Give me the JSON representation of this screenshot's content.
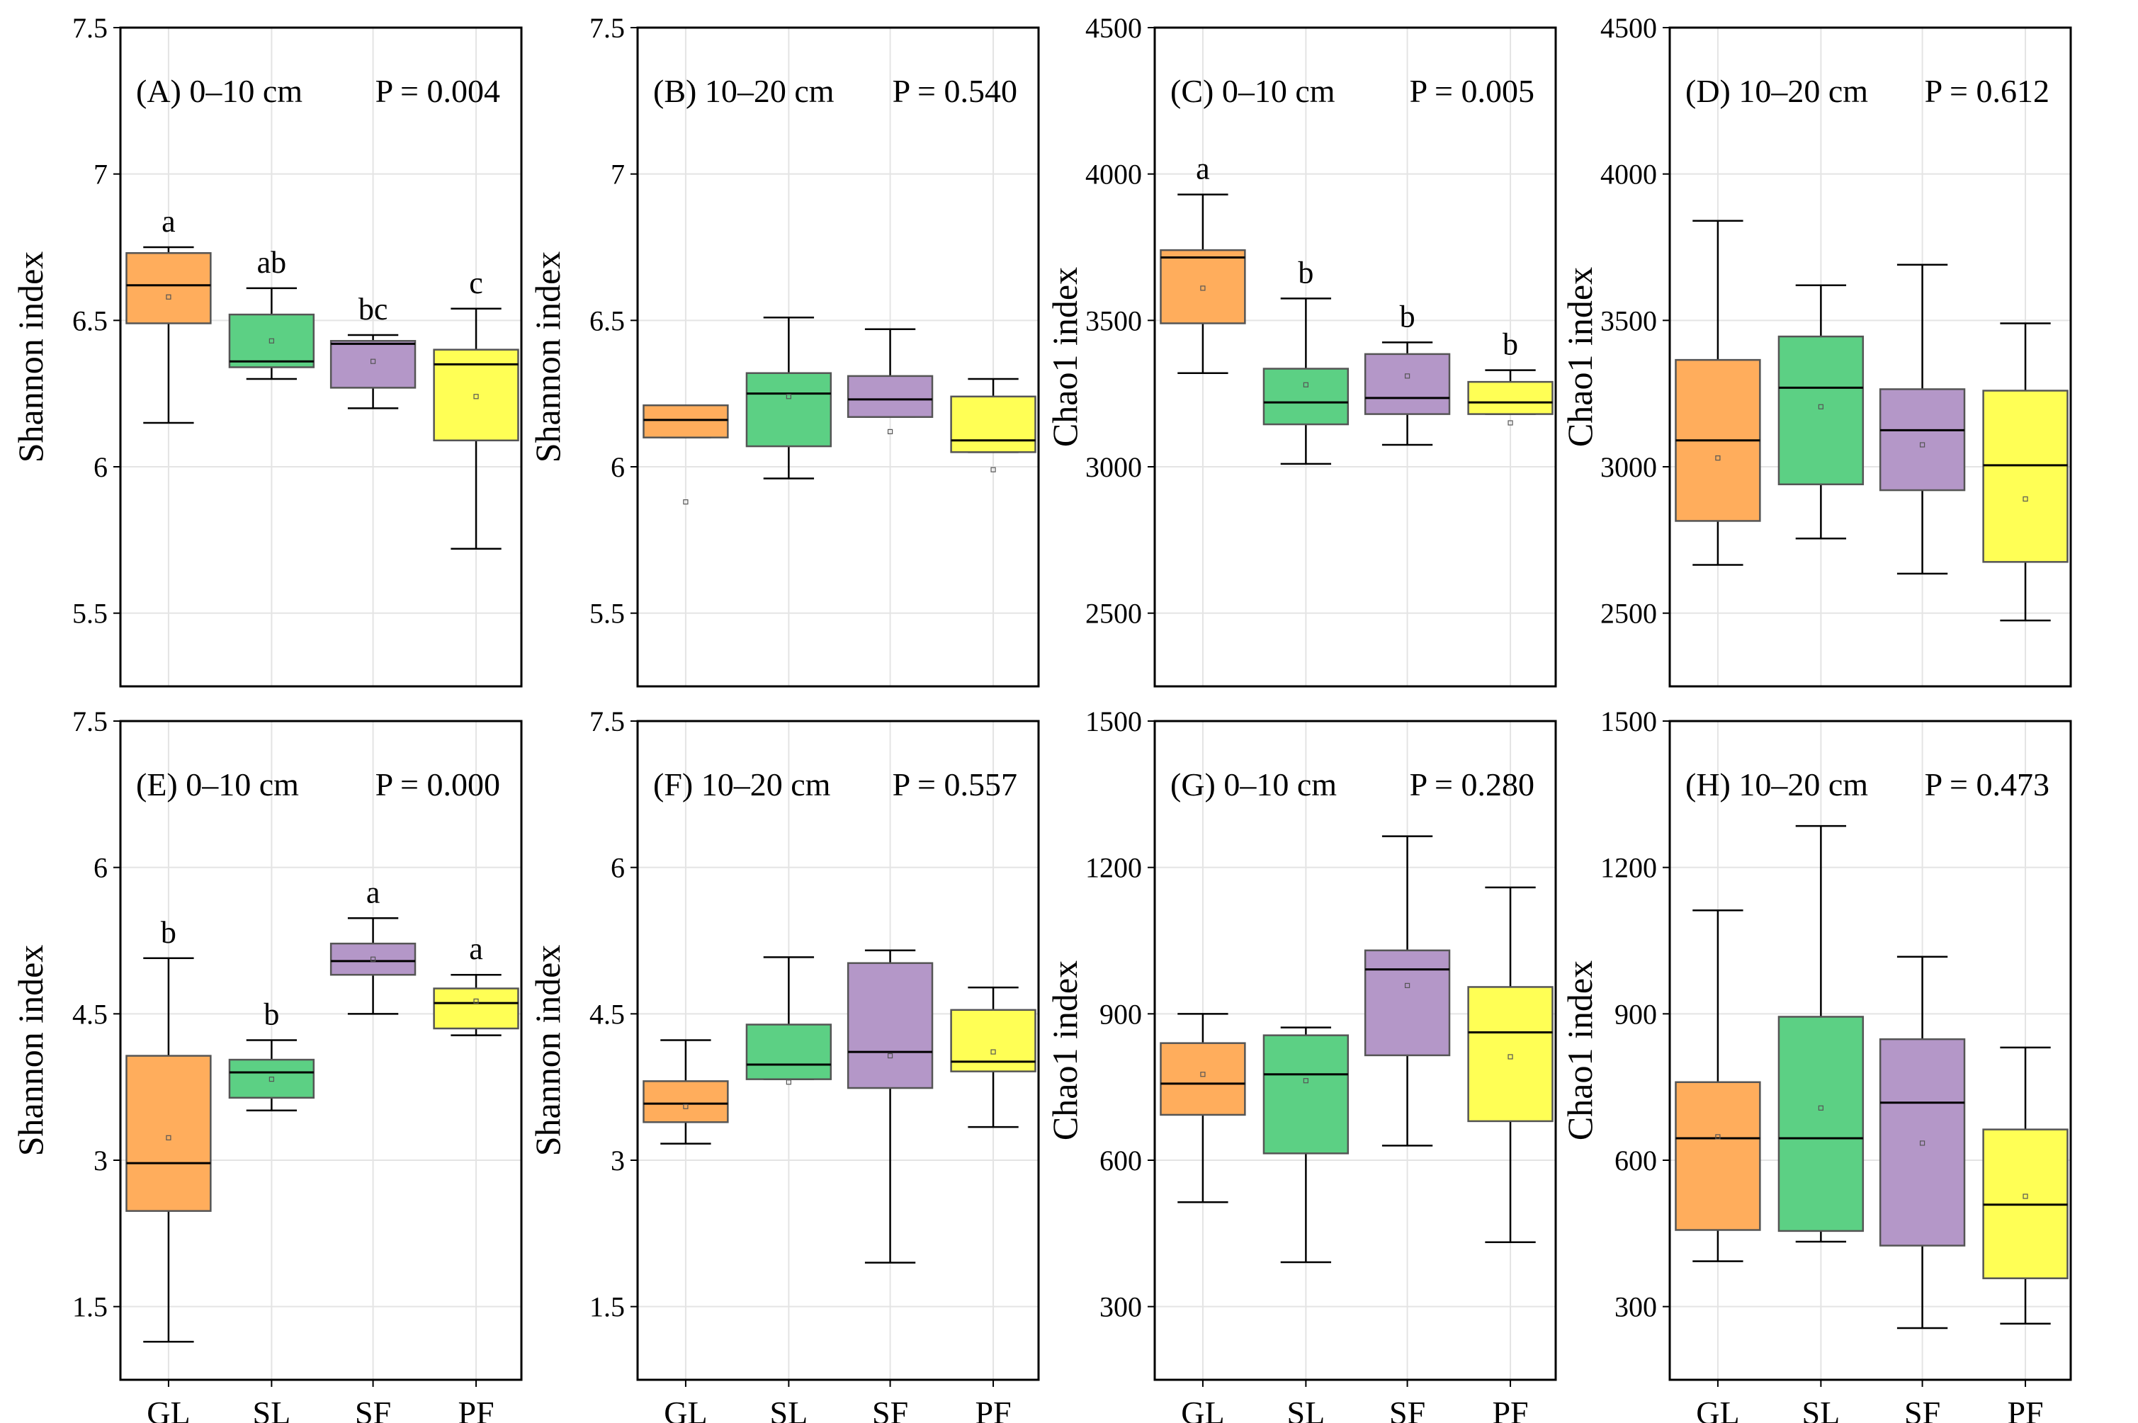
{
  "chart_data": [
    {
      "type": "box",
      "panel": "A",
      "title": "(A) 0–10 cm",
      "p_label": "P = 0.004",
      "ylabel": "Shannon index",
      "ylim": [
        5.25,
        7.5
      ],
      "yticks": [
        5.5,
        6.0,
        6.5,
        7.0,
        7.5
      ],
      "categories": [
        "GL",
        "SL",
        "SF",
        "PF"
      ],
      "boxes": [
        {
          "min": 6.15,
          "q1": 6.49,
          "median": 6.62,
          "q3": 6.73,
          "max": 6.75,
          "mean": 6.58,
          "letter": "a"
        },
        {
          "min": 6.3,
          "q1": 6.34,
          "median": 6.36,
          "q3": 6.52,
          "max": 6.61,
          "mean": 6.43,
          "letter": "ab"
        },
        {
          "min": 6.2,
          "q1": 6.27,
          "median": 6.42,
          "q3": 6.43,
          "max": 6.45,
          "mean": 6.36,
          "letter": "bc"
        },
        {
          "min": 5.72,
          "q1": 6.09,
          "median": 6.35,
          "q3": 6.4,
          "max": 6.54,
          "mean": 6.24,
          "letter": "c"
        }
      ]
    },
    {
      "type": "box",
      "panel": "B",
      "title": "(B) 10–20 cm",
      "p_label": "P = 0.540",
      "ylabel": "Shannon index",
      "ylim": [
        5.25,
        7.5
      ],
      "yticks": [
        5.5,
        6.0,
        6.5,
        7.0,
        7.5
      ],
      "categories": [
        "GL",
        "SL",
        "SF",
        "PF"
      ],
      "boxes": [
        {
          "min": 6.1,
          "q1": 6.1,
          "median": 6.16,
          "q3": 6.21,
          "max": 6.21,
          "mean": 5.88,
          "letter": ""
        },
        {
          "min": 5.96,
          "q1": 6.07,
          "median": 6.25,
          "q3": 6.32,
          "max": 6.51,
          "mean": 6.24,
          "letter": ""
        },
        {
          "min": 6.17,
          "q1": 6.17,
          "median": 6.23,
          "q3": 6.31,
          "max": 6.47,
          "mean": 6.12,
          "letter": ""
        },
        {
          "min": 6.05,
          "q1": 6.05,
          "median": 6.09,
          "q3": 6.24,
          "max": 6.3,
          "mean": 5.99,
          "letter": ""
        }
      ]
    },
    {
      "type": "box",
      "panel": "C",
      "title": "(C) 0–10 cm",
      "p_label": "P = 0.005",
      "ylabel": "Chao1 index",
      "ylim": [
        2250,
        4500
      ],
      "yticks": [
        2500,
        3000,
        3500,
        4000,
        4500
      ],
      "categories": [
        "GL",
        "SL",
        "SF",
        "PF"
      ],
      "boxes": [
        {
          "min": 3320,
          "q1": 3490,
          "median": 3715,
          "q3": 3740,
          "max": 3930,
          "mean": 3610,
          "letter": "a"
        },
        {
          "min": 3010,
          "q1": 3145,
          "median": 3220,
          "q3": 3335,
          "max": 3575,
          "mean": 3280,
          "letter": "b"
        },
        {
          "min": 3075,
          "q1": 3180,
          "median": 3235,
          "q3": 3385,
          "max": 3425,
          "mean": 3310,
          "letter": "b"
        },
        {
          "min": 3180,
          "q1": 3180,
          "median": 3220,
          "q3": 3290,
          "max": 3330,
          "mean": 3150,
          "letter": "b"
        }
      ]
    },
    {
      "type": "box",
      "panel": "D",
      "title": "(D) 10–20 cm",
      "p_label": "P = 0.612",
      "ylabel": "Chao1 index",
      "ylim": [
        2250,
        4500
      ],
      "yticks": [
        2500,
        3000,
        3500,
        4000,
        4500
      ],
      "categories": [
        "GL",
        "SL",
        "SF",
        "PF"
      ],
      "boxes": [
        {
          "min": 2665,
          "q1": 2815,
          "median": 3090,
          "q3": 3365,
          "max": 3840,
          "mean": 3030,
          "letter": ""
        },
        {
          "min": 2755,
          "q1": 2940,
          "median": 3270,
          "q3": 3445,
          "max": 3620,
          "mean": 3205,
          "letter": ""
        },
        {
          "min": 2635,
          "q1": 2920,
          "median": 3125,
          "q3": 3265,
          "max": 3690,
          "mean": 3075,
          "letter": ""
        },
        {
          "min": 2475,
          "q1": 2675,
          "median": 3005,
          "q3": 3260,
          "max": 3490,
          "mean": 2890,
          "letter": ""
        }
      ]
    },
    {
      "type": "box",
      "panel": "E",
      "title": "(E) 0–10 cm",
      "p_label": "P = 0.000",
      "ylabel": "Shannon index",
      "ylim": [
        0.75,
        7.5
      ],
      "yticks": [
        1.5,
        3.0,
        4.5,
        6.0,
        7.5
      ],
      "categories": [
        "GL",
        "SL",
        "SF",
        "PF"
      ],
      "boxes": [
        {
          "min": 1.14,
          "q1": 2.48,
          "median": 2.97,
          "q3": 4.07,
          "max": 5.07,
          "mean": 3.23,
          "letter": "b"
        },
        {
          "min": 3.51,
          "q1": 3.64,
          "median": 3.9,
          "q3": 4.03,
          "max": 4.23,
          "mean": 3.83,
          "letter": "b"
        },
        {
          "min": 4.5,
          "q1": 4.9,
          "median": 5.04,
          "q3": 5.22,
          "max": 5.48,
          "mean": 5.06,
          "letter": "a"
        },
        {
          "min": 4.28,
          "q1": 4.35,
          "median": 4.61,
          "q3": 4.76,
          "max": 4.9,
          "mean": 4.63,
          "letter": "a"
        }
      ]
    },
    {
      "type": "box",
      "panel": "F",
      "title": "(F) 10–20 cm",
      "p_label": "P = 0.557",
      "ylabel": "Shannon index",
      "ylim": [
        0.75,
        7.5
      ],
      "yticks": [
        1.5,
        3.0,
        4.5,
        6.0,
        7.5
      ],
      "categories": [
        "GL",
        "SL",
        "SF",
        "PF"
      ],
      "boxes": [
        {
          "min": 3.17,
          "q1": 3.39,
          "median": 3.58,
          "q3": 3.81,
          "max": 4.23,
          "mean": 3.55,
          "letter": ""
        },
        {
          "min": 3.83,
          "q1": 3.83,
          "median": 3.98,
          "q3": 4.39,
          "max": 5.08,
          "mean": 3.8,
          "letter": ""
        },
        {
          "min": 1.95,
          "q1": 3.74,
          "median": 4.11,
          "q3": 5.02,
          "max": 5.15,
          "mean": 4.07,
          "letter": ""
        },
        {
          "min": 3.34,
          "q1": 3.91,
          "median": 4.01,
          "q3": 4.54,
          "max": 4.77,
          "mean": 4.11,
          "letter": ""
        }
      ]
    },
    {
      "type": "box",
      "panel": "G",
      "title": "(G) 0–10 cm",
      "p_label": "P = 0.280",
      "ylabel": "Chao1 index",
      "ylim": [
        150,
        1500
      ],
      "yticks": [
        300,
        600,
        900,
        1200,
        1500
      ],
      "categories": [
        "GL",
        "SL",
        "SF",
        "PF"
      ],
      "boxes": [
        {
          "min": 514,
          "q1": 693,
          "median": 757,
          "q3": 840,
          "max": 900,
          "mean": 776,
          "letter": ""
        },
        {
          "min": 391,
          "q1": 614,
          "median": 776,
          "q3": 856,
          "max": 872,
          "mean": 763,
          "letter": ""
        },
        {
          "min": 630,
          "q1": 815,
          "median": 991,
          "q3": 1030,
          "max": 1264,
          "mean": 958,
          "letter": ""
        },
        {
          "min": 432,
          "q1": 680,
          "median": 862,
          "q3": 955,
          "max": 1159,
          "mean": 812,
          "letter": ""
        }
      ]
    },
    {
      "type": "box",
      "panel": "H",
      "title": "(H) 10–20 cm",
      "p_label": "P = 0.473",
      "ylabel": "Chao1 index",
      "ylim": [
        150,
        1500
      ],
      "yticks": [
        300,
        600,
        900,
        1200,
        1500
      ],
      "categories": [
        "GL",
        "SL",
        "SF",
        "PF"
      ],
      "boxes": [
        {
          "min": 393,
          "q1": 457,
          "median": 645,
          "q3": 760,
          "max": 1112,
          "mean": 648,
          "letter": ""
        },
        {
          "min": 433,
          "q1": 455,
          "median": 645,
          "q3": 894,
          "max": 1285,
          "mean": 707,
          "letter": ""
        },
        {
          "min": 256,
          "q1": 425,
          "median": 718,
          "q3": 848,
          "max": 1017,
          "mean": 635,
          "letter": ""
        },
        {
          "min": 265,
          "q1": 358,
          "median": 509,
          "q3": 663,
          "max": 831,
          "mean": 526,
          "letter": ""
        }
      ]
    }
  ],
  "colors": {
    "GL": "#FFAD5C",
    "SL": "#5CD084",
    "SF": "#B497C8",
    "PF": "#FFFF55"
  }
}
